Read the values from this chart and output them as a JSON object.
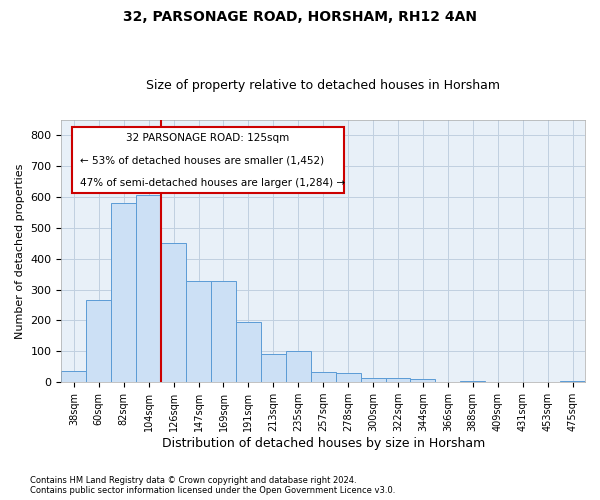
{
  "title1": "32, PARSONAGE ROAD, HORSHAM, RH12 4AN",
  "title2": "Size of property relative to detached houses in Horsham",
  "xlabel": "Distribution of detached houses by size in Horsham",
  "ylabel": "Number of detached properties",
  "footnote1": "Contains HM Land Registry data © Crown copyright and database right 2024.",
  "footnote2": "Contains public sector information licensed under the Open Government Licence v3.0.",
  "categories": [
    "38sqm",
    "60sqm",
    "82sqm",
    "104sqm",
    "126sqm",
    "147sqm",
    "169sqm",
    "191sqm",
    "213sqm",
    "235sqm",
    "257sqm",
    "278sqm",
    "300sqm",
    "322sqm",
    "344sqm",
    "366sqm",
    "388sqm",
    "409sqm",
    "431sqm",
    "453sqm",
    "475sqm"
  ],
  "values": [
    35,
    265,
    580,
    605,
    450,
    328,
    328,
    195,
    90,
    100,
    33,
    30,
    15,
    13,
    11,
    0,
    5,
    0,
    0,
    0,
    5
  ],
  "bar_color": "#cce0f5",
  "bar_edge_color": "#5b9bd5",
  "red_line_x": 3.5,
  "property_label": "32 PARSONAGE ROAD: 125sqm",
  "annotation_line1": "← 53% of detached houses are smaller (1,452)",
  "annotation_line2": "47% of semi-detached houses are larger (1,284) →",
  "ylim": [
    0,
    850
  ],
  "yticks": [
    0,
    100,
    200,
    300,
    400,
    500,
    600,
    700,
    800
  ],
  "ax_background_color": "#e8f0f8",
  "background_color": "#ffffff",
  "grid_color": "#c0cfe0",
  "annotation_box_facecolor": "#ffffff",
  "annotation_box_edgecolor": "#cc0000",
  "title1_fontsize": 10,
  "title2_fontsize": 9,
  "ylabel_fontsize": 8,
  "xlabel_fontsize": 9,
  "ytick_fontsize": 8,
  "xtick_fontsize": 7
}
